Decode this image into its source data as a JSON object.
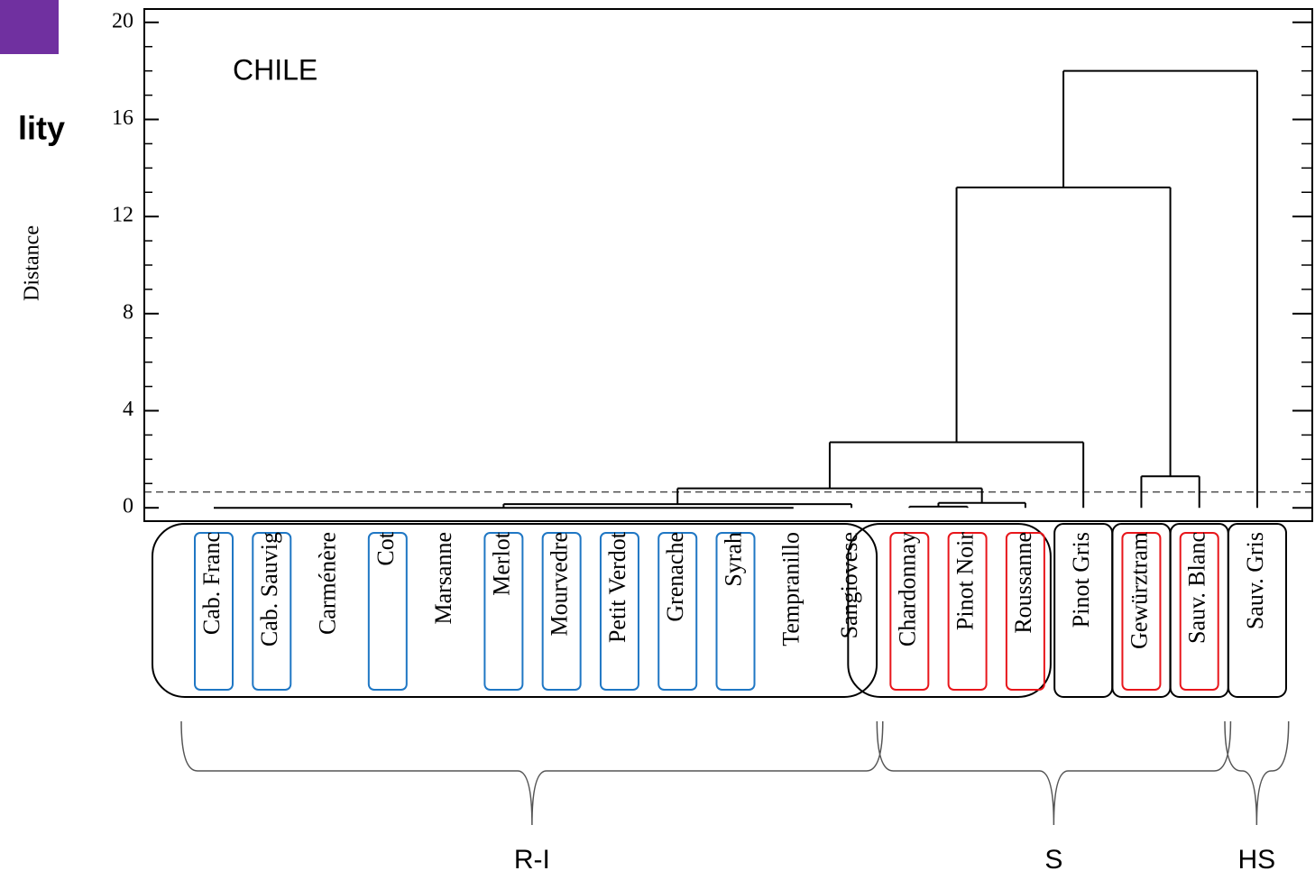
{
  "slide_fragment": "lity",
  "chart_data": {
    "type": "dendrogram",
    "title": "CHILE",
    "y_label": "Distance",
    "leaves": [
      "Cab. Franc",
      "Cab. Sauvig",
      "Carménère",
      "Cot",
      "Marsanne",
      "Merlot",
      "Mourvedre",
      "Petit Verdot",
      "Grenache",
      "Syrah",
      "Tempranillo",
      "Sangiovese",
      "Chardonnay",
      "Pinot Noir",
      "Roussanne",
      "Pinot Gris",
      "Gewürztram",
      "Sauv. Blanc",
      "Sauv. Gris"
    ],
    "merges": [
      {
        "children": [
          0,
          1,
          2,
          3,
          4,
          5,
          6,
          7,
          8,
          9,
          10
        ],
        "height": 0
      },
      {
        "children": [
          19,
          11
        ],
        "height": 0.15
      },
      {
        "children": [
          12,
          13
        ],
        "height": 0.05
      },
      {
        "children": [
          21,
          14
        ],
        "height": 0.2
      },
      {
        "children": [
          20,
          22
        ],
        "height": 0.8
      },
      {
        "children": [
          23,
          15
        ],
        "height": 2.7
      },
      {
        "children": [
          16,
          17
        ],
        "height": 1.3
      },
      {
        "children": [
          24,
          25
        ],
        "height": 13.2
      },
      {
        "children": [
          26,
          18
        ],
        "height": 18
      }
    ],
    "cut_height": 0.65,
    "ylim": [
      -0.55,
      20.55
    ],
    "yticks": [
      0,
      4,
      8,
      12,
      16,
      20
    ],
    "minor_yticks": [
      1,
      2,
      3,
      5,
      6,
      7,
      9,
      10,
      11,
      13,
      14,
      15,
      17,
      18,
      19
    ],
    "leaf_groups": [
      [
        0,
        11
      ],
      [
        12,
        14
      ],
      [
        15,
        15
      ],
      [
        16,
        16
      ],
      [
        17,
        17
      ],
      [
        18,
        18
      ]
    ],
    "highlights": [
      {
        "color": "#1f77c4",
        "leaves": [
          0,
          1,
          3,
          5,
          6,
          7,
          8,
          9
        ]
      },
      {
        "color": "#e8161b",
        "leaves": [
          12,
          13,
          14,
          16,
          17
        ]
      }
    ],
    "clusters": [
      {
        "label": "R-I",
        "leaves": [
          0,
          11
        ]
      },
      {
        "label": "S",
        "leaves": [
          12,
          17
        ]
      },
      {
        "label": "HS",
        "leaves": [
          18,
          18
        ]
      }
    ]
  }
}
